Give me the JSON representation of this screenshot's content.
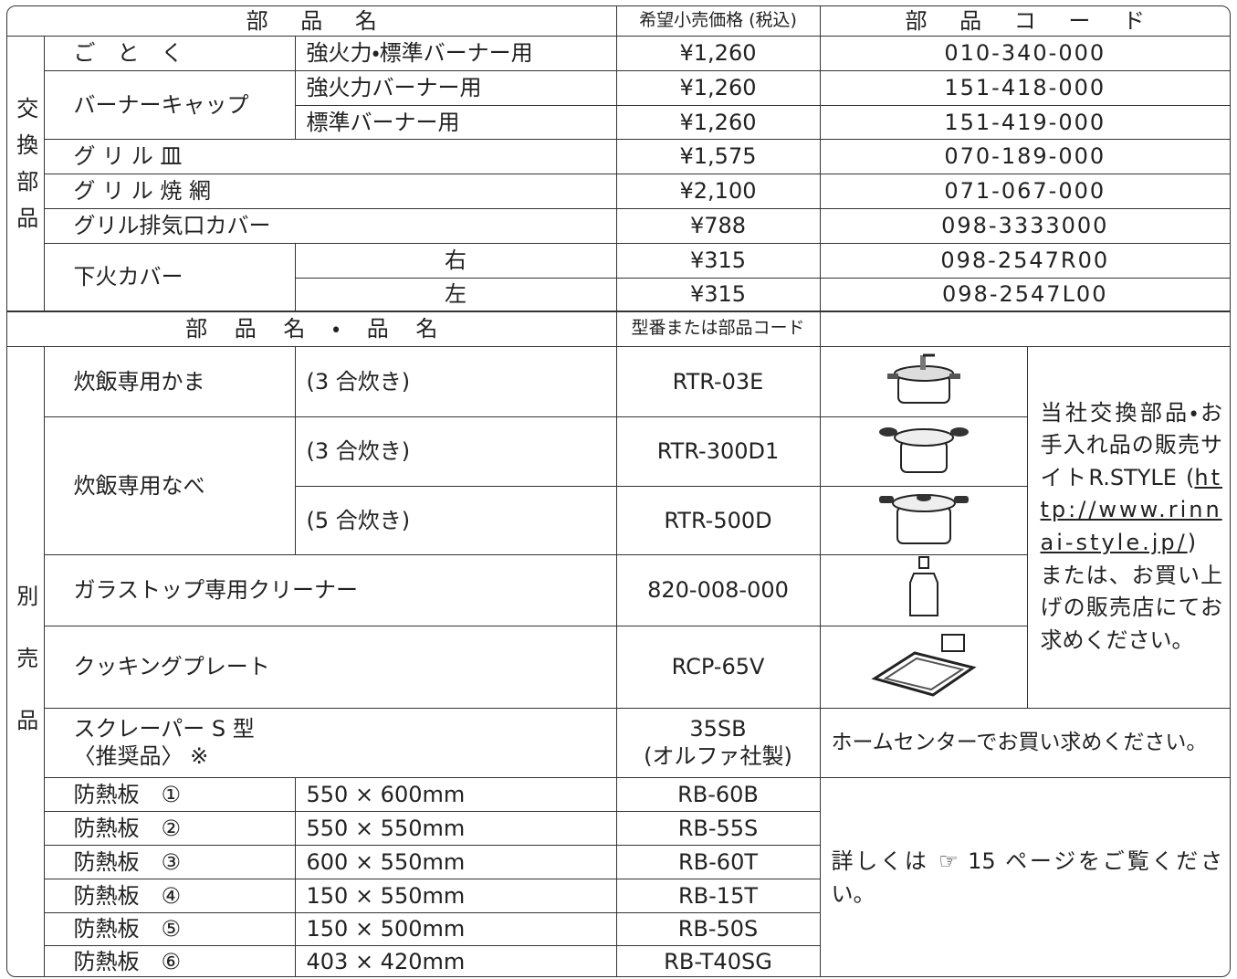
{
  "top_table": {
    "header": [
      "部 品 名",
      "希望小売価格 (税込)",
      "部 品 コ ー ド"
    ],
    "group_label": "交換部品",
    "rows": [
      {
        "name": "ご　と　く",
        "spec": "強火力・標準バーナー用",
        "price": "¥1,260",
        "code": "010-340-000"
      },
      {
        "name": "バーナーキャップ",
        "spec": "強火力バーナー用",
        "price": "¥1,260",
        "code": "151-418-000"
      },
      {
        "spec": "標準バーナー用",
        "price": "¥1,260",
        "code": "151-419-000"
      },
      {
        "name": "グ リ ル 皿",
        "price": "¥1,575",
        "code": "070-189-000"
      },
      {
        "name": "グ リ ル 焼 網",
        "price": "¥2,100",
        "code": "071-067-000"
      },
      {
        "name": "グリル排気口カバー",
        "price": "¥788",
        "code": "098-3333000"
      },
      {
        "name": "下火カバー",
        "spec": "右",
        "price": "¥315",
        "code": "098-2547R00"
      },
      {
        "spec": "左",
        "price": "¥315",
        "code": "098-2547L00"
      }
    ]
  },
  "bottom_table": {
    "header": [
      "部 品 名 ・ 品 名",
      "型番または部品コード"
    ],
    "group_label": "別売品",
    "items": [
      {
        "name": "炊飯専用かま",
        "spec": "(3 合炊き)",
        "code": "RTR-03E"
      },
      {
        "name": "炊飯専用なべ",
        "spec": "(3 合炊き)",
        "code": "RTR-300D1"
      },
      {
        "spec": "(5 合炊き)",
        "code": "RTR-500D"
      },
      {
        "name": "ガラストップ専用クリーナー",
        "code": "820-008-000"
      },
      {
        "name": "クッキングプレート",
        "code": "RCP-65V"
      }
    ],
    "note": {
      "pre": "当社交換部品・お手入れ品の販売サイトR.STYLE (",
      "url": "http://www.rinnai-style.jp/",
      "post": ") または、お買い上げの販売店にてお求めください。"
    },
    "scraper": {
      "name": "スクレーパー S 型",
      "remark": "〈推奨品〉 ※",
      "code": "35SB",
      "maker": "(オルファ社製)",
      "shop_note": "ホームセンターでお買い求めください。"
    },
    "boards": [
      {
        "name": "防熱板　①",
        "size": "550 × 600mm",
        "code": "RB-60B"
      },
      {
        "name": "防熱板　②",
        "size": "550 × 550mm",
        "code": "RB-55S"
      },
      {
        "name": "防熱板　③",
        "size": "600 × 550mm",
        "code": "RB-60T"
      },
      {
        "name": "防熱板　④",
        "size": "150 × 550mm",
        "code": "RB-15T"
      },
      {
        "name": "防熱板　⑤",
        "size": "150 × 500mm",
        "code": "RB-50S"
      },
      {
        "name": "防熱板　⑥",
        "size": "403 × 420mm",
        "code": "RB-T40SG"
      }
    ],
    "boards_note": "詳しくは ☞ 15 ページをご覧ください。"
  }
}
